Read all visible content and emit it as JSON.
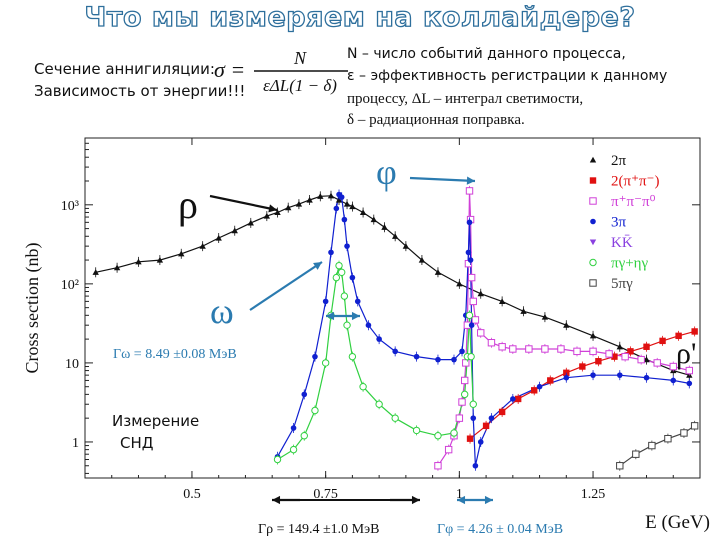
{
  "slide": {
    "title": "Что мы измеряем на коллайдере?",
    "cross_section_label": "Сечение аннигиляции:",
    "energy_dependence_label": "Зависимость от энергии!!!",
    "formula": {
      "lhs": "σ =",
      "numerator": "N",
      "denominator": "εΔL(1 − δ)"
    },
    "definitions": [
      "N – число событий данного процесса,",
      "ε – эффективность регистрации к данному",
      "процессу, ΔL – интеграл светимости,",
      "δ – радиационная поправка."
    ],
    "measurement_note": [
      "Измерение",
      "СНД"
    ]
  },
  "chart_data": {
    "type": "scatter",
    "ylabel": "Cross section (nb)",
    "xlabel": "E (GeV)",
    "y_scale": "log",
    "xlim": [
      0.3,
      1.45
    ],
    "ylim": [
      0.35,
      7000
    ],
    "x_ticks": [
      0.5,
      0.75,
      1,
      1.25
    ],
    "x_tick_labels": [
      "0.5",
      "0.75",
      "1",
      "1.25"
    ],
    "y_ticks": [
      1,
      10,
      100,
      1000
    ],
    "y_tick_labels": [
      "1",
      "10",
      "10²",
      "10³"
    ],
    "legend_position": "top-right",
    "legend": [
      {
        "label": "2π",
        "marker": "triangle",
        "color": "#111111"
      },
      {
        "label": "2(π⁺π⁻)",
        "marker": "square",
        "color": "#e01010"
      },
      {
        "label": "π⁺π⁻π⁰",
        "marker": "open-square",
        "color": "#d040d8"
      },
      {
        "label": "3π",
        "marker": "circle",
        "color": "#1020d0"
      },
      {
        "label": "KK̄",
        "marker": "down-triangle",
        "color": "#8a40e0"
      },
      {
        "label": "πγ+ηγ",
        "marker": "open-circle",
        "color": "#30d040"
      },
      {
        "label": "5πγ",
        "marker": "open-square",
        "color": "#444444"
      }
    ],
    "series": [
      {
        "name": "2π",
        "color": "#111111",
        "marker": "triangle",
        "x": [
          0.32,
          0.36,
          0.4,
          0.44,
          0.48,
          0.52,
          0.55,
          0.58,
          0.61,
          0.64,
          0.66,
          0.68,
          0.7,
          0.72,
          0.74,
          0.76,
          0.775,
          0.79,
          0.8,
          0.82,
          0.84,
          0.86,
          0.88,
          0.9,
          0.93,
          0.96,
          1.0,
          1.04,
          1.08,
          1.12,
          1.16,
          1.2,
          1.25,
          1.3,
          1.35,
          1.4,
          1.43
        ],
        "y": [
          140,
          160,
          190,
          200,
          240,
          300,
          380,
          470,
          590,
          720,
          800,
          920,
          1020,
          1150,
          1280,
          1300,
          1150,
          1020,
          950,
          800,
          650,
          520,
          400,
          300,
          200,
          140,
          100,
          75,
          60,
          45,
          38,
          30,
          22,
          16,
          11,
          8,
          7
        ]
      },
      {
        "name": "2(π⁺π⁻)",
        "color": "#e01010",
        "marker": "square",
        "x": [
          1.02,
          1.05,
          1.08,
          1.11,
          1.14,
          1.17,
          1.2,
          1.23,
          1.26,
          1.29,
          1.32,
          1.35,
          1.38,
          1.41,
          1.44
        ],
        "y": [
          1.1,
          1.6,
          2.4,
          3.5,
          4.5,
          6,
          7.5,
          9,
          10.5,
          12,
          14,
          16,
          19,
          22,
          25
        ]
      },
      {
        "name": "π⁺π⁻π⁰",
        "color": "#d040d8",
        "marker": "open-square",
        "x": [
          0.96,
          0.98,
          0.99,
          1.0,
          1.005,
          1.01,
          1.012,
          1.015,
          1.017,
          1.019,
          1.021,
          1.023,
          1.026,
          1.03,
          1.04,
          1.06,
          1.08,
          1.1,
          1.13,
          1.16,
          1.19,
          1.22,
          1.25,
          1.28,
          1.31,
          1.34,
          1.37,
          1.4,
          1.43
        ],
        "y": [
          0.5,
          0.8,
          1.2,
          2,
          3.2,
          6,
          10,
          30,
          180,
          1500,
          650,
          120,
          60,
          35,
          24,
          18,
          16,
          15,
          15,
          15,
          15,
          14,
          14,
          13,
          12,
          11,
          10,
          9,
          8
        ]
      },
      {
        "name": "3π",
        "color": "#1020d0",
        "marker": "circle",
        "x": [
          0.66,
          0.69,
          0.71,
          0.73,
          0.75,
          0.76,
          0.77,
          0.775,
          0.78,
          0.785,
          0.79,
          0.8,
          0.81,
          0.83,
          0.85,
          0.88,
          0.92,
          0.96,
          0.99,
          1.005,
          1.012,
          1.017,
          1.019,
          1.021,
          1.023,
          1.026,
          1.03,
          1.04,
          1.06,
          1.1,
          1.15,
          1.2,
          1.25,
          1.3,
          1.35,
          1.4,
          1.43
        ],
        "y": [
          0.65,
          1.5,
          4,
          12,
          60,
          250,
          900,
          1350,
          1250,
          650,
          300,
          120,
          60,
          30,
          20,
          14,
          12,
          11,
          11,
          14,
          40,
          250,
          600,
          200,
          30,
          2,
          0.5,
          1,
          2,
          3.5,
          5,
          6.5,
          7,
          7,
          6.5,
          6,
          5.5
        ]
      },
      {
        "name": "πγ+ηγ",
        "color": "#30d040",
        "marker": "open-circle",
        "x": [
          0.66,
          0.69,
          0.71,
          0.73,
          0.75,
          0.76,
          0.77,
          0.775,
          0.78,
          0.785,
          0.79,
          0.8,
          0.82,
          0.85,
          0.88,
          0.92,
          0.96,
          0.99,
          1.01,
          1.015,
          1.019,
          1.022,
          1.026
        ],
        "y": [
          0.6,
          0.8,
          1.2,
          2.5,
          10,
          40,
          120,
          170,
          140,
          70,
          30,
          12,
          5,
          3,
          2,
          1.4,
          1.2,
          1.3,
          4,
          12,
          40,
          12,
          3
        ]
      },
      {
        "name": "5πγ",
        "color": "#444444",
        "marker": "open-square",
        "x": [
          1.3,
          1.33,
          1.36,
          1.39,
          1.42,
          1.44
        ],
        "y": [
          0.5,
          0.7,
          0.9,
          1.1,
          1.3,
          1.6
        ]
      }
    ],
    "annotations": {
      "rho": "ρ",
      "phi": "φ",
      "omega": "ω",
      "rho_prime": "ρ'",
      "gamma_omega": "Γω = 8.49 ±0.08 МэВ",
      "gamma_rho": "Γρ = 149.4 ±1.0 МэВ",
      "gamma_phi": "Γφ = 4.26 ± 0.04 МэВ"
    }
  },
  "colors": {
    "title_outline": "#2e6f9c",
    "arrow_blue": "#2b7bb0",
    "axis": "#222222"
  }
}
